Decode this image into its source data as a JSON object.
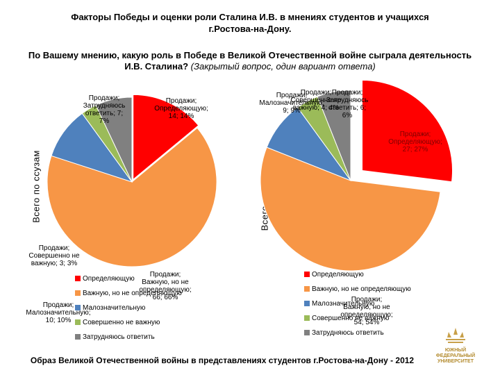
{
  "title_line1": "Факторы Победы  и  оценки  роли Сталина И.В. в мнениях студентов и учащихся",
  "title_line2": "г.Ростова-на-Дону.",
  "question_main": "По Вашему мнению, какую роль в Победе в Великой Отечественной войне сыграла деятельность И.В. Сталина?",
  "question_note": "(Закрытый вопрос, один вариант ответа)",
  "footer": "Образ Великой Отечественной войны в представлениях студентов г.Ростова-на-Дону - 2012",
  "logo_lines": [
    "ЮЖНЫЙ",
    "ФЕДЕРАЛЬНЫЙ",
    "УНИВЕРСИТЕТ"
  ],
  "colors": {
    "determining": "#ff0000",
    "important": "#f79646",
    "minor": "#4f81bd",
    "not_important": "#9bbb59",
    "hard_to_say": "#808080"
  },
  "chart_data": [
    {
      "type": "pie",
      "side_label": "Всего по ссузам",
      "categories": [
        "Определяющую",
        "Важную, но не определяющую",
        "Малозначительную",
        "Совершенно не важную",
        "Затрудняюсь ответить"
      ],
      "values": [
        14,
        66,
        10,
        3,
        7
      ],
      "percents": [
        "14%",
        "66%",
        "10%",
        "3%",
        "7%"
      ],
      "data_labels": [
        "Продажи; Определяющую; 14; 14%",
        "Продажи; Важную, но не определяющую; 66; 66%",
        "Продажи; Малозначительную; 10; 10%",
        "Продажи; Совершенно не важную; 3; 3%",
        "Продажи; Затрудняюсь ответить; 7; 7%"
      ],
      "legend": [
        "Определяющую",
        "Важную, но не определяющую",
        "Малозначительную",
        "Совершенно не важную",
        "Затрудняюсь ответить"
      ]
    },
    {
      "type": "pie",
      "side_label": "Всего по вузам",
      "categories": [
        "Определяющую",
        "Важную, но не определяющую",
        "Малозначительную",
        "Совершенно не важную",
        "Затрудняюсь ответить"
      ],
      "values": [
        27,
        54,
        9,
        4,
        6
      ],
      "percents": [
        "27%",
        "54%",
        "9%",
        "4%",
        "6%"
      ],
      "data_labels": [
        "Продажи; Определяющую; 27; 27%",
        "Продажи; Важную, но не определяющую; 54; 54%",
        "Продажи; Малозначительную; 9; 9%",
        "Продажи; Совершенно не важную; 4; 4%",
        "Продажи; Затрудняюсь ответить; 6; 6%"
      ],
      "legend": [
        "Определяющую",
        "Важную, но не определяющую",
        "Малозначительную",
        "Совершенно не важную",
        "Затрудняюсь ответить"
      ]
    }
  ]
}
